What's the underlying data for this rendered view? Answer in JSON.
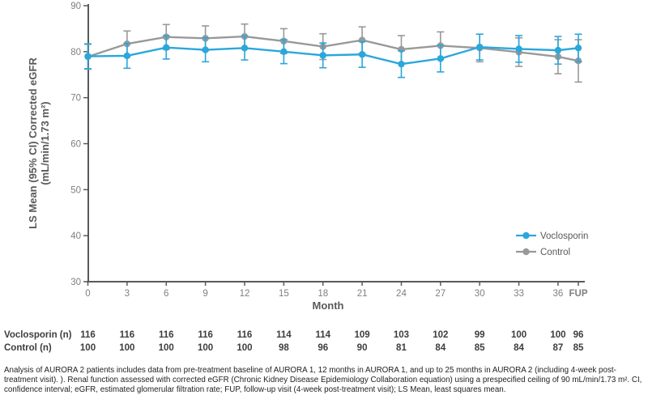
{
  "colors": {
    "voclosporin": "#2aa7db",
    "control": "#999999",
    "axis": "#595959",
    "tick_label": "#7f7f7f",
    "table_text": "#3d3d3d",
    "footnote_text": "#222222"
  },
  "chart_data": {
    "type": "line",
    "title": "",
    "xlabel": "Month",
    "ylabel": "LS Mean (95% CI) Corrected eGFR (mL/min/1.73 m²)",
    "ylabel_lines": [
      "LS Mean (95% CI) Corrected eGFR",
      "(mL/min/1.73 m²)"
    ],
    "x_categories": [
      "0",
      "3",
      "6",
      "9",
      "12",
      "15",
      "18",
      "21",
      "24",
      "27",
      "30",
      "33",
      "36",
      "FUP"
    ],
    "y_ticks": [
      30,
      40,
      50,
      60,
      70,
      80,
      90
    ],
    "ylim": [
      30,
      90
    ],
    "grid": false,
    "error_bars": "95% CI",
    "legend_position": "right-middle",
    "series": [
      {
        "name": "Control",
        "color": "#999999",
        "values": [
          78.9,
          81.7,
          83.2,
          82.9,
          83.3,
          82.3,
          81.1,
          82.5,
          80.5,
          81.3,
          80.8,
          79.9,
          78.9,
          78.0
        ],
        "ci_half": [
          2.7,
          2.8,
          2.7,
          2.7,
          2.7,
          2.7,
          2.8,
          2.9,
          3.0,
          3.0,
          3.0,
          3.1,
          3.7,
          4.6
        ]
      },
      {
        "name": "Voclosporin",
        "color": "#2aa7db",
        "values": [
          79.0,
          79.1,
          80.9,
          80.4,
          80.8,
          80.0,
          79.2,
          79.4,
          77.3,
          78.5,
          81.0,
          80.6,
          80.3,
          80.8
        ],
        "ci_half": [
          2.7,
          2.7,
          2.5,
          2.6,
          2.6,
          2.6,
          2.7,
          2.8,
          2.9,
          2.9,
          2.8,
          2.9,
          3.0,
          3.0
        ]
      }
    ],
    "legend_items": [
      "Voclosporin",
      "Control"
    ]
  },
  "table": {
    "rows": [
      {
        "label": "Voclosporin (n)",
        "values": [
          "116",
          "116",
          "116",
          "116",
          "116",
          "114",
          "114",
          "109",
          "103",
          "102",
          "99",
          "100",
          "100",
          "96"
        ]
      },
      {
        "label": "Control (n)",
        "values": [
          "100",
          "100",
          "100",
          "100",
          "100",
          "98",
          "96",
          "90",
          "81",
          "84",
          "85",
          "84",
          "87",
          "85"
        ]
      }
    ]
  },
  "footnote": "Analysis of AURORA 2 patients includes data from pre-treatment baseline of AURORA 1, 12 months in AURORA 1, and up to 25 months in AURORA 2 (including 4-week post-treatment visit). ).  Renal function assessed with corrected eGFR (Chronic Kidney Disease Epidemiology Collaboration equation) using a prespecified ceiling of 90 mL/min/1.73 m².  CI, confidence interval; eGFR, estimated glomerular filtration rate; FUP, follow-up visit (4-week post-treatment visit); LS Mean, least squares mean."
}
